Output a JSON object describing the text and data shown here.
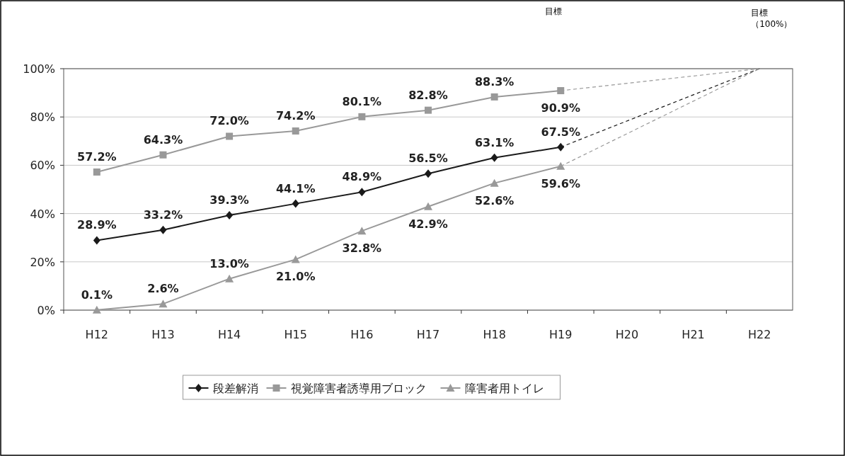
{
  "chart_data": {
    "type": "line",
    "categories": [
      "H12",
      "H13",
      "H14",
      "H15",
      "H16",
      "H17",
      "H18",
      "H19",
      "H20",
      "H21",
      "H22"
    ],
    "series": [
      {
        "name": "段差解消",
        "color": "#1a1a1a",
        "marker": "diamond",
        "values": [
          28.9,
          33.2,
          39.3,
          44.1,
          48.9,
          56.5,
          63.1,
          67.5,
          null,
          null,
          null
        ],
        "value_labels": [
          "28.9%",
          "33.2%",
          "39.3%",
          "44.1%",
          "48.9%",
          "56.5%",
          "63.1%",
          "67.5%",
          null,
          null,
          null
        ]
      },
      {
        "name": "視覚障害者誘導用ブロック",
        "color": "#999999",
        "marker": "square",
        "values": [
          57.2,
          64.3,
          72.0,
          74.2,
          80.1,
          82.8,
          88.3,
          90.9,
          null,
          null,
          null
        ],
        "value_labels": [
          "57.2%",
          "64.3%",
          "72.0%",
          "74.2%",
          "80.1%",
          "82.8%",
          "88.3%",
          "90.9%",
          null,
          null,
          null
        ]
      },
      {
        "name": "障害者用トイレ",
        "color": "#999999",
        "marker": "triangle",
        "values": [
          0.1,
          2.6,
          13.0,
          21.0,
          32.8,
          42.9,
          52.6,
          59.6,
          null,
          null,
          null
        ],
        "value_labels": [
          "0.1%",
          "2.6%",
          "13.0%",
          "21.0%",
          "32.8%",
          "42.9%",
          "52.6%",
          "59.6%",
          null,
          null,
          null
        ]
      },
      {
        "color": "#1a1a1a",
        "line_style": "dashed",
        "x": [
          "H19",
          "H22"
        ],
        "values": [
          67.5,
          100
        ]
      },
      {
        "color": "#999999",
        "line_style": "dashed",
        "x": [
          "H19",
          "H22"
        ],
        "values": [
          90.9,
          100
        ]
      },
      {
        "color": "#999999",
        "line_style": "dashed",
        "x": [
          "H19",
          "H22"
        ],
        "values": [
          59.6,
          100
        ]
      }
    ],
    "ylim": [
      0,
      100
    ],
    "yticks": [
      {
        "value": 0,
        "label": "0%"
      },
      {
        "value": 20,
        "label": "20%"
      },
      {
        "value": 40,
        "label": "40%"
      },
      {
        "value": 60,
        "label": "60%"
      },
      {
        "value": 80,
        "label": "80%"
      },
      {
        "value": 100,
        "label": "100%"
      }
    ],
    "grid": "y",
    "legend": "bottom",
    "annotations": [
      "目標",
      "目標",
      "（100%）"
    ]
  }
}
